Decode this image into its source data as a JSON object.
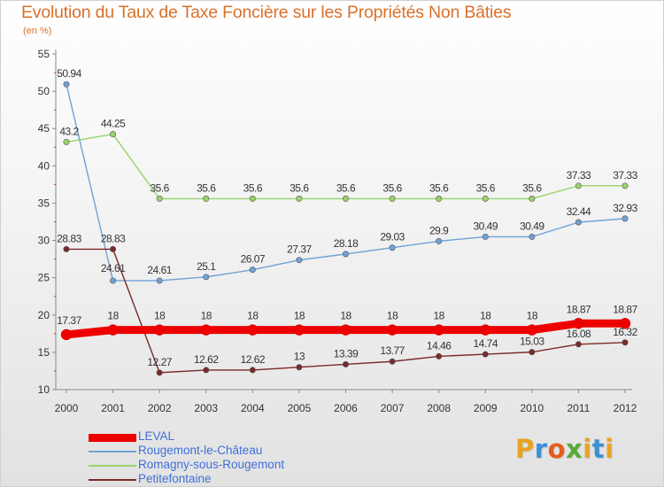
{
  "title": "Evolution du Taux de Taxe Foncière sur les Propriétés Non Bâties",
  "subtitle": "(en %)",
  "logo": {
    "letters": [
      "P",
      "r",
      "o",
      "x",
      "i",
      "t",
      "i"
    ],
    "colors": [
      "#e8a321",
      "#3c8fd4",
      "#e45d1c",
      "#58a936",
      "#e8a321",
      "#3c8fd4",
      "#e8a321"
    ]
  },
  "chart_data": {
    "type": "line",
    "title": "Evolution du Taux de Taxe Foncière sur les Propriétés Non Bâties",
    "ylabel": "(en %)",
    "xlabel": "",
    "x": [
      "2000",
      "2001",
      "2002",
      "2003",
      "2004",
      "2005",
      "2006",
      "2007",
      "2008",
      "2009",
      "2010",
      "2011",
      "2012"
    ],
    "ylim": [
      10,
      55
    ],
    "yticks": [
      10,
      15,
      20,
      25,
      30,
      35,
      40,
      45,
      50,
      55
    ],
    "grid": false,
    "legend_position": "bottom-left",
    "series": [
      {
        "name": "LEVAL",
        "color": "#ee0000",
        "values": [
          17.37,
          18,
          18,
          18,
          18,
          18,
          18,
          18,
          18,
          18,
          18,
          18.87,
          18.87
        ],
        "labels": [
          "17.37",
          "18",
          "18",
          "18",
          "18",
          "18",
          "18",
          "18",
          "18",
          "18",
          "18",
          "18.87",
          "18.87"
        ]
      },
      {
        "name": "Rougemont-le-Château",
        "color": "#6fa2d6",
        "values": [
          50.94,
          24.61,
          24.61,
          25.1,
          26.07,
          27.37,
          28.18,
          29.03,
          29.9,
          30.49,
          30.49,
          32.44,
          32.93
        ],
        "labels": [
          "50.94",
          "24.61",
          "24.61",
          "25.1",
          "26.07",
          "27.37",
          "28.18",
          "29.03",
          "29.9",
          "30.49",
          "30.49",
          "32.44",
          "32.93"
        ]
      },
      {
        "name": "Romagny-sous-Rougemont",
        "color": "#98d46a",
        "values": [
          43.2,
          44.25,
          35.6,
          35.6,
          35.6,
          35.6,
          35.6,
          35.6,
          35.6,
          35.6,
          35.6,
          37.33,
          37.33
        ],
        "labels": [
          "43.2",
          "44.25",
          "35.6",
          "35.6",
          "35.6",
          "35.6",
          "35.6",
          "35.6",
          "35.6",
          "35.6",
          "35.6",
          "37.33",
          "37.33"
        ]
      },
      {
        "name": "Petitefontaine",
        "color": "#7a2a2a",
        "values": [
          28.83,
          28.83,
          12.27,
          12.62,
          12.62,
          13,
          13.39,
          13.77,
          14.46,
          14.74,
          15.03,
          16.08,
          16.32
        ],
        "labels": [
          "28.83",
          "28.83",
          "12.27",
          "12.62",
          "12.62",
          "13",
          "13.39",
          "13.77",
          "14.46",
          "14.74",
          "15.03",
          "16.08",
          "16.32"
        ]
      }
    ]
  }
}
